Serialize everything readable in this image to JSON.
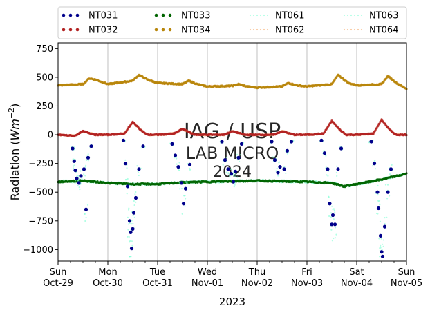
{
  "chart_data": {
    "type": "scatter",
    "ylabel": "Radiation ($Wm^{-2}$)",
    "xlabel": "2023",
    "ylim": [
      -1100,
      800
    ],
    "yticks": [
      -1000,
      -750,
      -500,
      -250,
      0,
      250,
      500,
      750
    ],
    "x_range": [
      "2023-10-29",
      "2023-11-05"
    ],
    "xticks": [
      {
        "date": "2023-10-29",
        "day": "Sun",
        "label": "Oct-29"
      },
      {
        "date": "2023-10-30",
        "day": "Mon",
        "label": "Oct-30"
      },
      {
        "date": "2023-10-31",
        "day": "Tue",
        "label": "Oct-31"
      },
      {
        "date": "2023-11-01",
        "day": "Wed",
        "label": "Nov-01"
      },
      {
        "date": "2023-11-02",
        "day": "Thu",
        "label": "Nov-02"
      },
      {
        "date": "2023-11-03",
        "day": "Fri",
        "label": "Nov-03"
      },
      {
        "date": "2023-11-04",
        "day": "Sat",
        "label": "Nov-04"
      },
      {
        "date": "2023-11-05",
        "day": "Sun",
        "label": "Nov-05"
      }
    ],
    "grid": "vertical",
    "legend": {
      "placement": "top, above plot",
      "columns": 4
    },
    "watermark": [
      "IAG / USP",
      "LAB MICRO",
      "2024"
    ],
    "series": [
      {
        "name": "NT031",
        "color": "#00008b",
        "style": "dots",
        "kind": "shortwave-up",
        "points": [
          [
            "2023-10-29 07:00",
            -120
          ],
          [
            "2023-10-29 07:45",
            -230
          ],
          [
            "2023-10-29 08:20",
            -310
          ],
          [
            "2023-10-29 09:00",
            -380
          ],
          [
            "2023-10-29 10:00",
            -420
          ],
          [
            "2023-10-29 11:00",
            -360
          ],
          [
            "2023-10-29 12:30",
            -300
          ],
          [
            "2023-10-29 13:30",
            -650
          ],
          [
            "2023-10-29 14:30",
            -200
          ],
          [
            "2023-10-29 16:00",
            -100
          ],
          [
            "2023-10-30 07:30",
            -50
          ],
          [
            "2023-10-30 08:30",
            -250
          ],
          [
            "2023-10-30 09:30",
            -450
          ],
          [
            "2023-10-30 10:30",
            -750
          ],
          [
            "2023-10-30 11:00",
            -850
          ],
          [
            "2023-10-30 11:30",
            -990
          ],
          [
            "2023-10-30 12:00",
            -820
          ],
          [
            "2023-10-30 12:30",
            -680
          ],
          [
            "2023-10-30 13:30",
            -550
          ],
          [
            "2023-10-30 15:00",
            -300
          ],
          [
            "2023-10-30 17:00",
            -100
          ],
          [
            "2023-10-31 07:00",
            -80
          ],
          [
            "2023-10-31 08:30",
            -180
          ],
          [
            "2023-10-31 10:00",
            -280
          ],
          [
            "2023-10-31 11:30",
            -420
          ],
          [
            "2023-10-31 12:30",
            -600
          ],
          [
            "2023-10-31 13:30",
            -470
          ],
          [
            "2023-10-31 15:30",
            -260
          ],
          [
            "2023-11-01 07:00",
            -60
          ],
          [
            "2023-11-01 08:30",
            -220
          ],
          [
            "2023-11-01 10:00",
            -300
          ],
          [
            "2023-11-01 11:30",
            -340
          ],
          [
            "2023-11-01 12:30",
            -410
          ],
          [
            "2023-11-01 13:30",
            -320
          ],
          [
            "2023-11-01 15:00",
            -200
          ],
          [
            "2023-11-01 16:30",
            -80
          ],
          [
            "2023-11-02 07:00",
            -60
          ],
          [
            "2023-11-02 08:30",
            -220
          ],
          [
            "2023-11-02 10:00",
            -330
          ],
          [
            "2023-11-02 11:00",
            -280
          ],
          [
            "2023-11-02 13:00",
            -300
          ],
          [
            "2023-11-02 14:30",
            -140
          ],
          [
            "2023-11-02 16:30",
            -60
          ],
          [
            "2023-11-03 07:00",
            -50
          ],
          [
            "2023-11-03 08:30",
            -160
          ],
          [
            "2023-11-03 10:00",
            -300
          ],
          [
            "2023-11-03 11:00",
            -600
          ],
          [
            "2023-11-03 12:00",
            -780
          ],
          [
            "2023-11-03 12:30",
            -700
          ],
          [
            "2023-11-03 13:30",
            -780
          ],
          [
            "2023-11-03 15:00",
            -300
          ],
          [
            "2023-11-03 16:30",
            -120
          ],
          [
            "2023-11-04 07:00",
            -60
          ],
          [
            "2023-11-04 08:30",
            -250
          ],
          [
            "2023-11-04 10:00",
            -500
          ],
          [
            "2023-11-04 10:30",
            -640
          ],
          [
            "2023-11-04 11:30",
            -880
          ],
          [
            "2023-11-04 12:00",
            -1020
          ],
          [
            "2023-11-04 12:30",
            -1060
          ],
          [
            "2023-11-04 13:30",
            -800
          ],
          [
            "2023-11-04 15:00",
            -500
          ],
          [
            "2023-11-04 16:30",
            -300
          ]
        ]
      },
      {
        "name": "NT032",
        "color": "#b22222",
        "style": "dots",
        "kind": "net",
        "points": [
          [
            "2023-10-29 00:00",
            0
          ],
          [
            "2023-10-29 08:00",
            -10
          ],
          [
            "2023-10-29 12:00",
            30
          ],
          [
            "2023-10-29 18:00",
            0
          ],
          [
            "2023-10-30 00:00",
            0
          ],
          [
            "2023-10-30 08:00",
            10
          ],
          [
            "2023-10-30 12:00",
            110
          ],
          [
            "2023-10-30 16:00",
            40
          ],
          [
            "2023-10-30 19:00",
            0
          ],
          [
            "2023-10-31 00:00",
            0
          ],
          [
            "2023-10-31 08:00",
            10
          ],
          [
            "2023-10-31 12:00",
            50
          ],
          [
            "2023-10-31 18:00",
            0
          ],
          [
            "2023-11-01 00:00",
            0
          ],
          [
            "2023-11-01 08:00",
            0
          ],
          [
            "2023-11-01 12:00",
            30
          ],
          [
            "2023-11-01 18:00",
            0
          ],
          [
            "2023-11-02 00:00",
            0
          ],
          [
            "2023-11-02 08:00",
            0
          ],
          [
            "2023-11-02 12:00",
            30
          ],
          [
            "2023-11-02 18:00",
            0
          ],
          [
            "2023-11-03 00:00",
            0
          ],
          [
            "2023-11-03 08:00",
            10
          ],
          [
            "2023-11-03 12:00",
            120
          ],
          [
            "2023-11-03 16:00",
            40
          ],
          [
            "2023-11-03 19:00",
            0
          ],
          [
            "2023-11-04 00:00",
            0
          ],
          [
            "2023-11-04 08:00",
            10
          ],
          [
            "2023-11-04 12:00",
            130
          ],
          [
            "2023-11-04 16:00",
            40
          ],
          [
            "2023-11-04 19:00",
            0
          ],
          [
            "2023-11-05 00:00",
            0
          ]
        ]
      },
      {
        "name": "NT033",
        "color": "#006400",
        "style": "dots",
        "kind": "longwave-out",
        "points": [
          [
            "2023-10-29 00:00",
            -410
          ],
          [
            "2023-10-29 12:00",
            -400
          ],
          [
            "2023-10-30 00:00",
            -420
          ],
          [
            "2023-10-30 12:00",
            -430
          ],
          [
            "2023-10-31 00:00",
            -430
          ],
          [
            "2023-10-31 12:00",
            -415
          ],
          [
            "2023-11-01 00:00",
            -410
          ],
          [
            "2023-11-01 12:00",
            -405
          ],
          [
            "2023-11-02 00:00",
            -400
          ],
          [
            "2023-11-02 12:00",
            -405
          ],
          [
            "2023-11-03 00:00",
            -410
          ],
          [
            "2023-11-03 12:00",
            -420
          ],
          [
            "2023-11-03 18:00",
            -450
          ],
          [
            "2023-11-04 00:00",
            -430
          ],
          [
            "2023-11-04 12:00",
            -390
          ],
          [
            "2023-11-05 00:00",
            -340
          ]
        ]
      },
      {
        "name": "NT034",
        "color": "#b8860b",
        "style": "dots",
        "kind": "longwave-in",
        "points": [
          [
            "2023-10-29 00:00",
            430
          ],
          [
            "2023-10-29 12:00",
            440
          ],
          [
            "2023-10-29 15:00",
            490
          ],
          [
            "2023-10-29 18:00",
            480
          ],
          [
            "2023-10-30 00:00",
            440
          ],
          [
            "2023-10-30 12:00",
            470
          ],
          [
            "2023-10-30 15:00",
            520
          ],
          [
            "2023-10-30 19:00",
            480
          ],
          [
            "2023-10-31 00:00",
            450
          ],
          [
            "2023-10-31 12:00",
            440
          ],
          [
            "2023-10-31 15:00",
            470
          ],
          [
            "2023-10-31 19:00",
            440
          ],
          [
            "2023-11-01 00:00",
            420
          ],
          [
            "2023-11-01 12:00",
            425
          ],
          [
            "2023-11-01 15:00",
            440
          ],
          [
            "2023-11-01 19:00",
            420
          ],
          [
            "2023-11-02 00:00",
            410
          ],
          [
            "2023-11-02 12:00",
            420
          ],
          [
            "2023-11-02 15:00",
            450
          ],
          [
            "2023-11-02 19:00",
            430
          ],
          [
            "2023-11-03 00:00",
            420
          ],
          [
            "2023-11-03 12:00",
            440
          ],
          [
            "2023-11-03 15:00",
            520
          ],
          [
            "2023-11-03 20:00",
            450
          ],
          [
            "2023-11-04 00:00",
            430
          ],
          [
            "2023-11-04 12:00",
            440
          ],
          [
            "2023-11-04 15:00",
            510
          ],
          [
            "2023-11-04 20:00",
            440
          ],
          [
            "2023-11-05 00:00",
            400
          ]
        ]
      },
      {
        "name": "NT061",
        "color": "#7fffd4",
        "style": "dotted",
        "kind": "shortwave-up"
      },
      {
        "name": "NT062",
        "color": "#f4a460",
        "style": "dotted",
        "kind": "net"
      },
      {
        "name": "NT063",
        "color": "#7fffd4",
        "style": "dotted",
        "kind": "longwave-out"
      },
      {
        "name": "NT064",
        "color": "#f4a460",
        "style": "dotted",
        "kind": "longwave-in"
      }
    ]
  }
}
